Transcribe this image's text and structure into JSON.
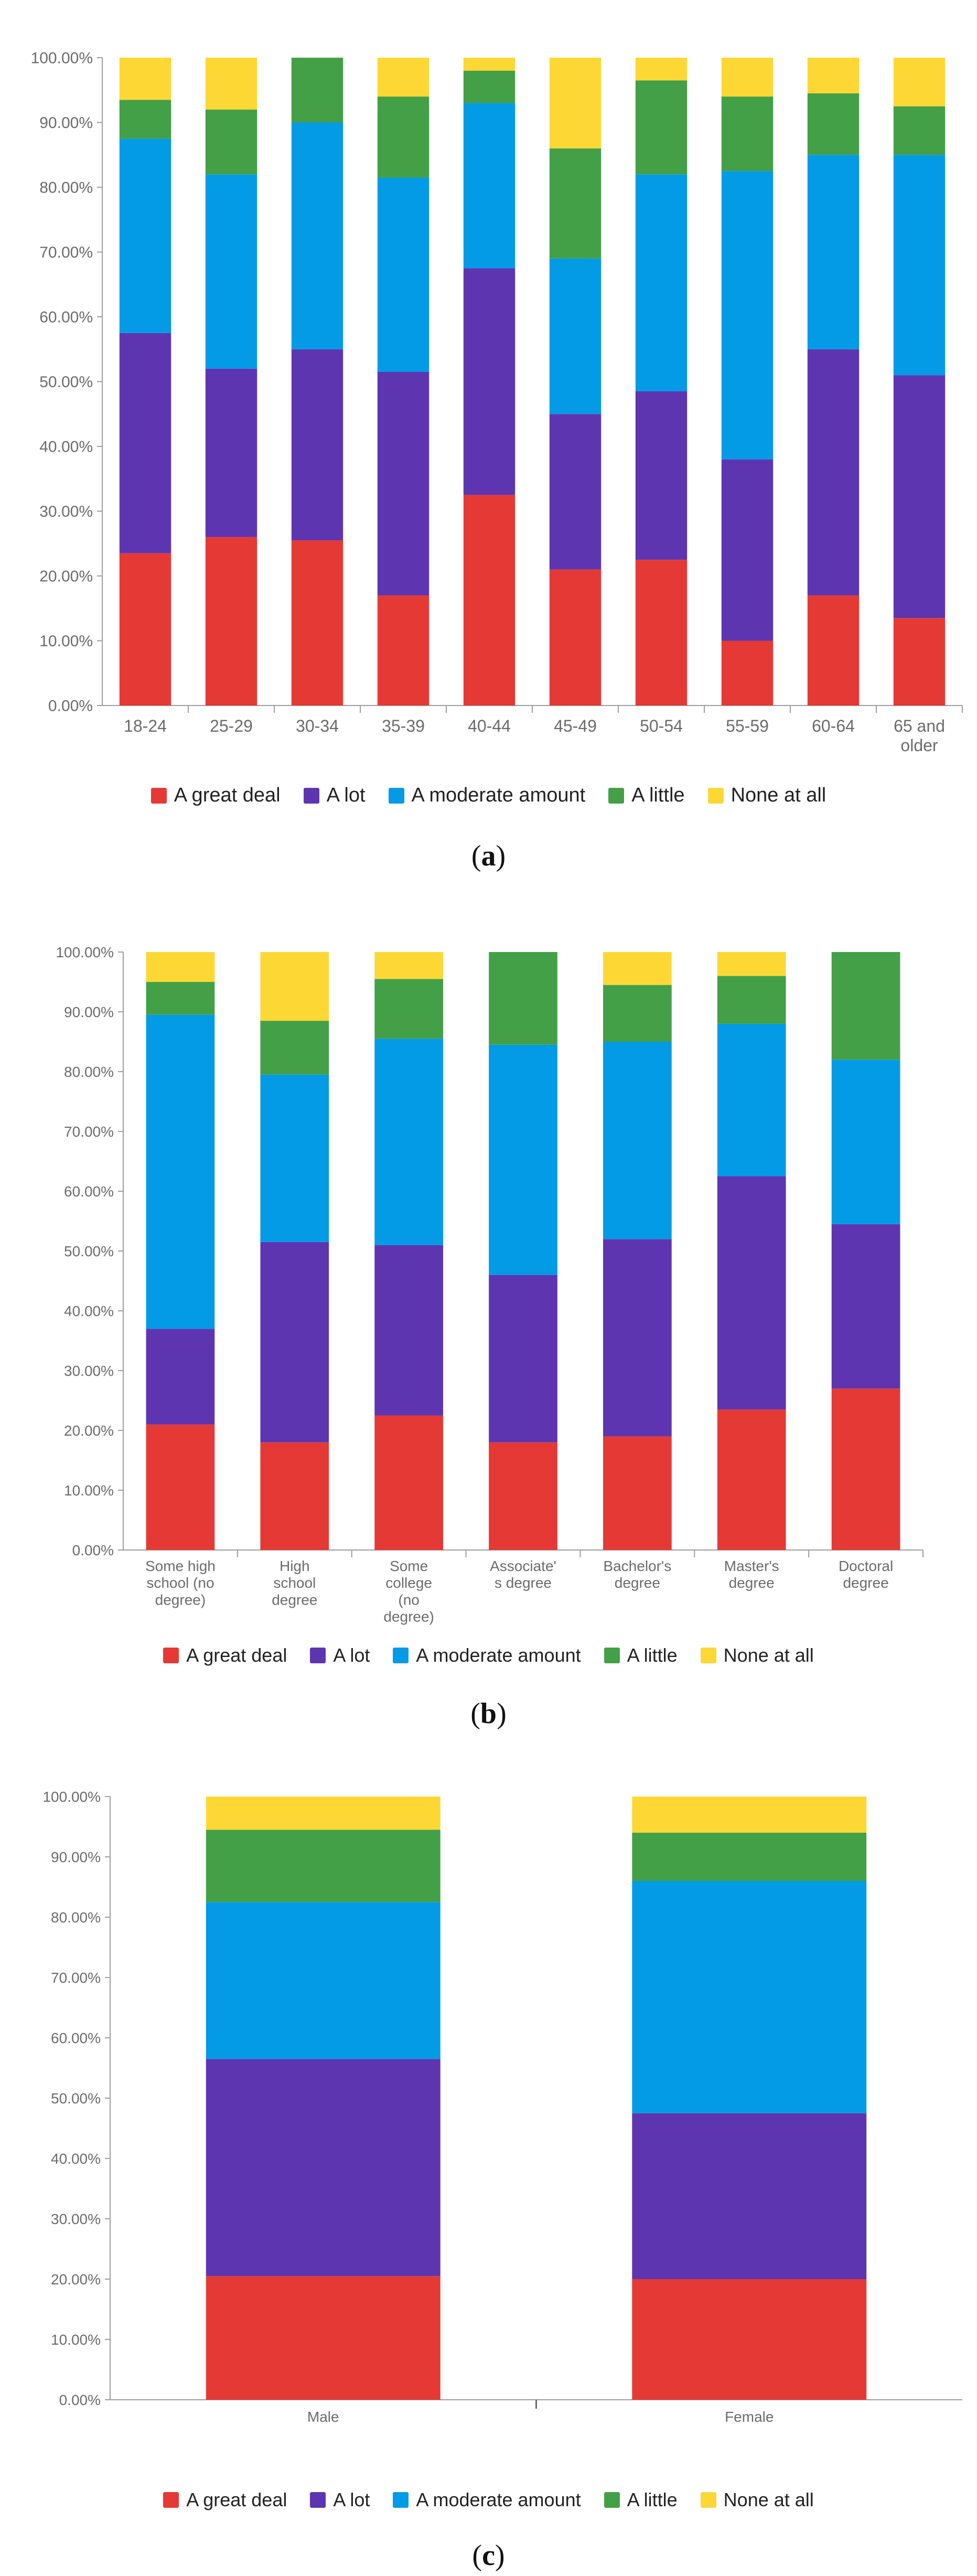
{
  "colors": {
    "A great deal": "#e53935",
    "A lot": "#5e35b1",
    "A moderate amount": "#039be5",
    "A little": "#43a047",
    "None at all": "#fdd835"
  },
  "chart_data": [
    {
      "type": "bar",
      "stacked": true,
      "caption_label": "a",
      "title": "",
      "xlabel": "",
      "ylabel": "",
      "ylim": [
        0,
        100
      ],
      "y_ticks": [
        "0.00%",
        "10.00%",
        "20.00%",
        "30.00%",
        "40.00%",
        "50.00%",
        "60.00%",
        "70.00%",
        "80.00%",
        "90.00%",
        "100.00%"
      ],
      "categories": [
        [
          "18-24"
        ],
        [
          "25-29"
        ],
        [
          "30-34"
        ],
        [
          "35-39"
        ],
        [
          "40-44"
        ],
        [
          "45-49"
        ],
        [
          "50-54"
        ],
        [
          "55-59"
        ],
        [
          "60-64"
        ],
        [
          "65 and",
          "older"
        ]
      ],
      "series": [
        {
          "name": "A great deal",
          "values": [
            23.5,
            26.0,
            25.5,
            17.0,
            32.5,
            21.0,
            22.5,
            10.0,
            17.0,
            13.5
          ]
        },
        {
          "name": "A lot",
          "values": [
            34.0,
            26.0,
            29.5,
            34.5,
            35.0,
            24.0,
            26.0,
            28.0,
            38.0,
            37.5
          ]
        },
        {
          "name": "A moderate amount",
          "values": [
            30.0,
            30.0,
            35.0,
            30.0,
            25.5,
            24.0,
            33.5,
            44.5,
            30.0,
            34.0
          ]
        },
        {
          "name": "A little",
          "values": [
            6.0,
            10.0,
            10.0,
            12.5,
            5.0,
            17.0,
            14.5,
            11.5,
            9.5,
            7.5
          ]
        },
        {
          "name": "None at all",
          "values": [
            6.5,
            8.0,
            0.0,
            6.0,
            2.0,
            14.0,
            3.5,
            6.0,
            5.5,
            7.5
          ]
        }
      ],
      "legend": [
        "A great deal",
        "A lot",
        "A moderate amount",
        "A little",
        "None at all"
      ]
    },
    {
      "type": "bar",
      "stacked": true,
      "caption_label": "b",
      "title": "",
      "xlabel": "",
      "ylabel": "",
      "ylim": [
        0,
        100
      ],
      "y_ticks": [
        "0.00%",
        "10.00%",
        "20.00%",
        "30.00%",
        "40.00%",
        "50.00%",
        "60.00%",
        "70.00%",
        "80.00%",
        "90.00%",
        "100.00%"
      ],
      "categories": [
        [
          "Some high",
          "school (no",
          "degree)"
        ],
        [
          "High",
          "school",
          "degree"
        ],
        [
          "Some",
          "college",
          "(no",
          "degree)"
        ],
        [
          "Associate'",
          "s degree"
        ],
        [
          "Bachelor's",
          "degree"
        ],
        [
          "Master's",
          "degree"
        ],
        [
          "Doctoral",
          "degree"
        ]
      ],
      "series": [
        {
          "name": "A great deal",
          "values": [
            21.0,
            18.0,
            22.5,
            18.0,
            19.0,
            23.5,
            27.0
          ]
        },
        {
          "name": "A lot",
          "values": [
            16.0,
            33.5,
            28.5,
            28.0,
            33.0,
            39.0,
            27.5
          ]
        },
        {
          "name": "A moderate amount",
          "values": [
            52.5,
            28.0,
            34.5,
            38.5,
            33.0,
            25.5,
            27.5
          ]
        },
        {
          "name": "A little",
          "values": [
            5.5,
            9.0,
            10.0,
            15.5,
            9.5,
            8.0,
            18.0
          ]
        },
        {
          "name": "None at all",
          "values": [
            5.0,
            11.5,
            4.5,
            0.0,
            5.5,
            4.0,
            0.0
          ]
        }
      ],
      "legend": [
        "A great deal",
        "A lot",
        "A moderate amount",
        "A little",
        "None at all"
      ]
    },
    {
      "type": "bar",
      "stacked": true,
      "caption_label": "c",
      "title": "",
      "xlabel": "",
      "ylabel": "",
      "ylim": [
        0,
        100
      ],
      "y_ticks": [
        "0.00%",
        "10.00%",
        "20.00%",
        "30.00%",
        "40.00%",
        "50.00%",
        "60.00%",
        "70.00%",
        "80.00%",
        "90.00%",
        "100.00%"
      ],
      "categories": [
        [
          "Male"
        ],
        [
          "Female"
        ]
      ],
      "series": [
        {
          "name": "A great deal",
          "values": [
            20.5,
            20.0
          ]
        },
        {
          "name": "A lot",
          "values": [
            36.0,
            27.5
          ]
        },
        {
          "name": "A moderate amount",
          "values": [
            26.0,
            38.5
          ]
        },
        {
          "name": "A little",
          "values": [
            12.0,
            8.0
          ]
        },
        {
          "name": "None at all",
          "values": [
            5.5,
            6.0
          ]
        }
      ],
      "legend": [
        "A great deal",
        "A lot",
        "A moderate amount",
        "A little",
        "None at all"
      ]
    }
  ]
}
